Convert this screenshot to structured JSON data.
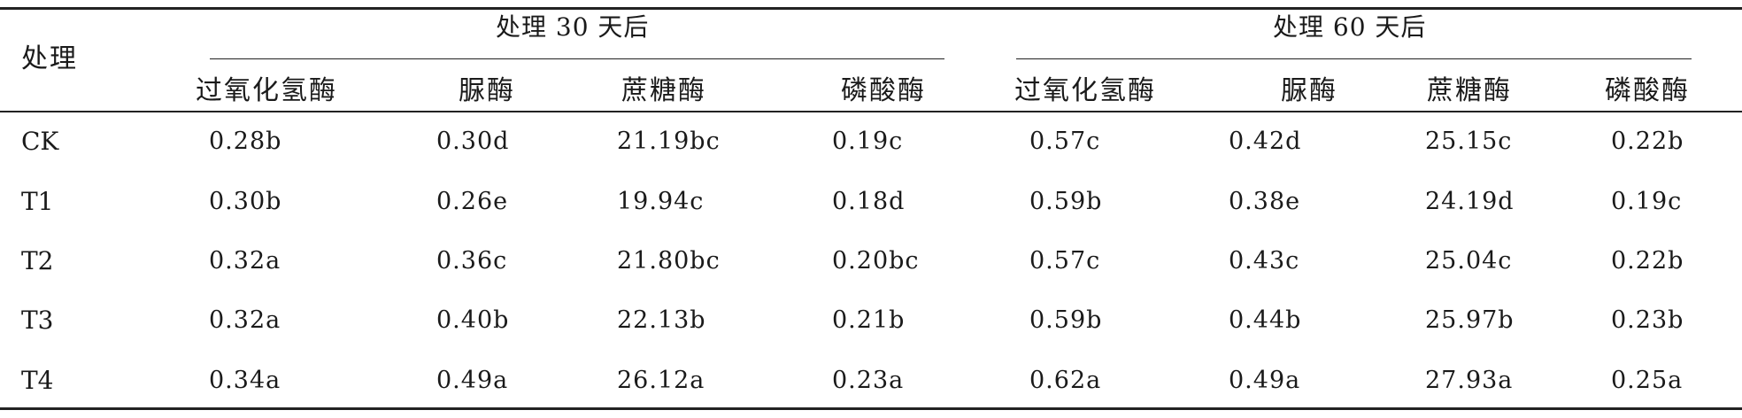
{
  "table": {
    "corner_header": "处理",
    "groups": [
      {
        "label": "处理 30 天后"
      },
      {
        "label": "处理 60 天后"
      }
    ],
    "columns": [
      "过氧化氢酶",
      "脲酶",
      "蔗糖酶",
      "磷酸酶",
      "过氧化氢酶",
      "脲酶",
      "蔗糖酶",
      "磷酸酶"
    ],
    "rows": [
      {
        "label": "CK",
        "values": [
          "0.28b",
          "0.30d",
          "21.19bc",
          "0.19c",
          "0.57c",
          "0.42d",
          "25.15c",
          "0.22b"
        ]
      },
      {
        "label": "T1",
        "values": [
          "0.30b",
          "0.26e",
          "19.94c",
          "0.18d",
          "0.59b",
          "0.38e",
          "24.19d",
          "0.19c"
        ]
      },
      {
        "label": "T2",
        "values": [
          "0.32a",
          "0.36c",
          "21.80bc",
          "0.20bc",
          "0.57c",
          "0.43c",
          "25.04c",
          "0.22b"
        ]
      },
      {
        "label": "T3",
        "values": [
          "0.32a",
          "0.40b",
          "22.13b",
          "0.21b",
          "0.59b",
          "0.44b",
          "25.97b",
          "0.23b"
        ]
      },
      {
        "label": "T4",
        "values": [
          "0.34a",
          "0.49a",
          "26.12a",
          "0.23a",
          "0.62a",
          "0.49a",
          "27.93a",
          "0.25a"
        ]
      }
    ]
  }
}
